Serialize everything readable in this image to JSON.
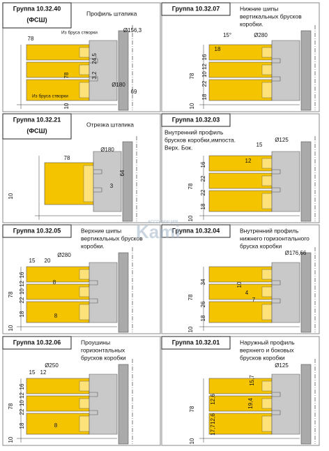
{
  "panels": [
    {
      "group": "Группа 10.32.40",
      "sub": "(ФСШ)",
      "desc": [
        "Профиль штапика"
      ],
      "dims": [
        "78",
        "Ø156,3",
        "24,5",
        "3,2",
        "Ø180",
        "69",
        "78",
        "10"
      ],
      "notes": [
        "Из бруса створки",
        "Из бруса створки"
      ]
    },
    {
      "group": "Группа 10.32.07",
      "desc": [
        "Нижние шипы",
        "вертикальных брусков",
        "коробки."
      ],
      "dims": [
        "15°",
        "Ø280",
        "18",
        "16",
        "10 12",
        "22",
        "18",
        "78",
        "10"
      ]
    },
    {
      "group": "Группа 10.32.21",
      "sub": "(ФСШ)",
      "desc": [
        "Отрезка штапика"
      ],
      "dims": [
        "Ø180",
        "78",
        "64",
        "3",
        "10"
      ]
    },
    {
      "group": "Группа 10.32.03",
      "desc": [
        "Внутренний профиль",
        "брусков коробки,импоста.",
        "Верх. Бок."
      ],
      "dims": [
        "15",
        "Ø125",
        "12",
        "16",
        "22",
        "22",
        "18",
        "78",
        "10"
      ]
    },
    {
      "group": "Группа 10.32.05",
      "desc": [
        "Верхние шипы",
        "вертикальных брусков",
        "коробки."
      ],
      "dims": [
        "15",
        "20",
        "Ø280",
        "16",
        "10 12",
        "22",
        "18",
        "78",
        "8",
        "8",
        "10"
      ]
    },
    {
      "group": "Группа 10.32.04",
      "desc": [
        "Внутренний профиль",
        "нижнего горизонтального",
        "бруска коробки"
      ],
      "dims": [
        "Ø176,66",
        "34",
        "10",
        "4",
        "7",
        "26",
        "18",
        "78",
        "10"
      ]
    },
    {
      "group": "Группа 10.32.06",
      "desc": [
        "Проушины",
        "горизонтальных",
        "брусков коробки"
      ],
      "dims": [
        "Ø250",
        "15",
        "12",
        "16",
        "10 12",
        "22",
        "18",
        "78",
        "8",
        "10"
      ]
    },
    {
      "group": "Группа 10.32.01",
      "desc": [
        "Наружный профиль",
        "верхнего и боковых",
        "брусков коробки"
      ],
      "dims": [
        "Ø125",
        "15,7",
        "12,6",
        "19,4",
        "12,6",
        "17,7",
        "78",
        "10"
      ]
    }
  ],
  "watermark": {
    "top": "АССОЦИАЦИЯ",
    "main": "Kami"
  }
}
